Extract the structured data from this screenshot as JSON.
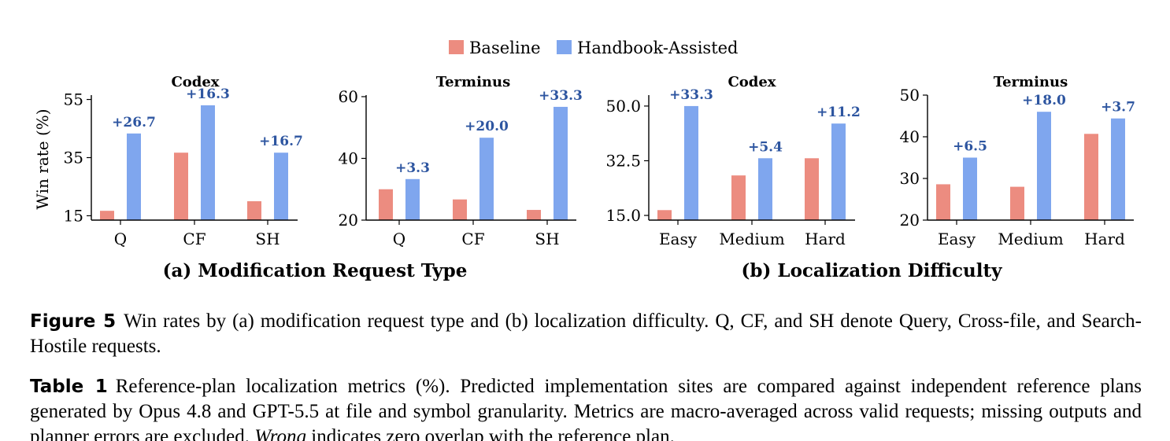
{
  "legend": {
    "entries": [
      {
        "name": "Baseline",
        "color": "#ec8c80"
      },
      {
        "name": "Handbook-Assisted",
        "color": "#7fa6ee"
      }
    ],
    "placement": "top-center"
  },
  "annotation_color": "#2d55a0",
  "panel_titles": {
    "a": "(a) Modification Request Type",
    "b": "(b) Localization Difficulty"
  },
  "chart_data": [
    {
      "type": "bar",
      "title": "Codex",
      "ylabel": "Win rate (%)",
      "categories": [
        "Q",
        "CF",
        "SH"
      ],
      "ylim": [
        13.5,
        56.5
      ],
      "yticks": [
        15,
        35,
        55
      ],
      "ytick_labels": [
        "15",
        "35",
        "55"
      ],
      "series": [
        {
          "name": "Baseline",
          "values": [
            16.7,
            36.7,
            20.0
          ]
        },
        {
          "name": "Handbook-Assisted",
          "values": [
            43.3,
            53.0,
            36.7
          ]
        }
      ],
      "annotations": [
        "+26.7",
        "+16.3",
        "+16.7"
      ]
    },
    {
      "type": "bar",
      "title": "Terminus",
      "ylabel": "",
      "categories": [
        "Q",
        "CF",
        "SH"
      ],
      "ylim": [
        20,
        60.5
      ],
      "yticks": [
        20,
        40,
        60
      ],
      "ytick_labels": [
        "20",
        "40",
        "60"
      ],
      "series": [
        {
          "name": "Baseline",
          "values": [
            30.0,
            26.7,
            23.3
          ]
        },
        {
          "name": "Handbook-Assisted",
          "values": [
            33.3,
            46.7,
            56.7
          ]
        }
      ],
      "annotations": [
        "+3.3",
        "+20.0",
        "+33.3"
      ]
    },
    {
      "type": "bar",
      "title": "Codex",
      "ylabel": "",
      "categories": [
        "Easy",
        "Medium",
        "Hard"
      ],
      "ylim": [
        13.5,
        53.5
      ],
      "yticks": [
        15.0,
        32.5,
        50.0
      ],
      "ytick_labels": [
        "15.0",
        "32.5",
        "50.0"
      ],
      "series": [
        {
          "name": "Baseline",
          "values": [
            16.7,
            27.8,
            33.3
          ]
        },
        {
          "name": "Handbook-Assisted",
          "values": [
            50.0,
            33.3,
            44.4
          ]
        }
      ],
      "annotations": [
        "+33.3",
        "+5.4",
        "+11.2"
      ]
    },
    {
      "type": "bar",
      "title": "Terminus",
      "ylabel": "",
      "categories": [
        "Easy",
        "Medium",
        "Hard"
      ],
      "ylim": [
        20,
        50
      ],
      "yticks": [
        20,
        30,
        40,
        50
      ],
      "ytick_labels": [
        "20",
        "30",
        "40",
        "50"
      ],
      "series": [
        {
          "name": "Baseline",
          "values": [
            28.6,
            28.0,
            40.7
          ]
        },
        {
          "name": "Handbook-Assisted",
          "values": [
            35.0,
            46.0,
            44.4
          ]
        }
      ],
      "annotations": [
        "+6.5",
        "+18.0",
        "+3.7"
      ]
    }
  ],
  "figure_caption": {
    "label": "Figure 5",
    "text": "Win rates by (a) modification request type and (b) localization difficulty. Q, CF, and SH denote Query, Cross-file, and Search-Hostile requests."
  },
  "table_caption": {
    "label": "Table 1",
    "text_before": "Reference-plan localization metrics (%). Predicted implementation sites are compared against independent reference plans generated by Opus 4.8 and GPT-5.5 at file and symbol granularity. Metrics are macro-averaged across valid requests; missing outputs and planner errors are excluded.",
    "emph": "Wrong",
    "text_after": "indicates zero overlap with the reference plan."
  }
}
